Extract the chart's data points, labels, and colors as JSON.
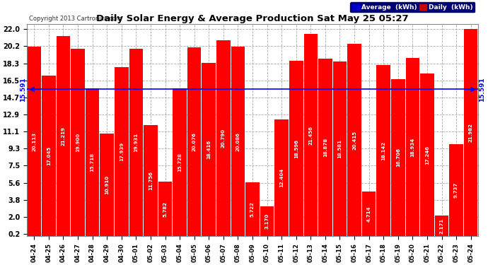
{
  "title": "Daily Solar Energy & Average Production Sat May 25 05:27",
  "copyright": "Copyright 2013 Cartronics.com",
  "average_value": 15.591,
  "bar_color": "#ff0000",
  "average_line_color": "#0000ff",
  "background_color": "#ffffff",
  "plot_bg_color": "#ffffff",
  "grid_color": "#aaaaaa",
  "categories": [
    "04-24",
    "04-25",
    "04-26",
    "04-27",
    "04-28",
    "04-29",
    "04-30",
    "05-01",
    "05-02",
    "05-03",
    "05-04",
    "05-05",
    "05-06",
    "05-07",
    "05-08",
    "05-09",
    "05-10",
    "05-11",
    "05-12",
    "05-13",
    "05-14",
    "05-15",
    "05-16",
    "05-17",
    "05-18",
    "05-19",
    "05-20",
    "05-21",
    "05-22",
    "05-23",
    "05-24"
  ],
  "values": [
    20.113,
    17.045,
    21.219,
    19.9,
    15.718,
    10.91,
    17.939,
    19.931,
    11.756,
    5.782,
    15.728,
    20.076,
    18.416,
    20.79,
    20.086,
    5.722,
    3.17,
    12.404,
    18.596,
    21.456,
    18.878,
    18.581,
    20.415,
    4.714,
    18.142,
    16.706,
    18.934,
    17.246,
    2.171,
    9.737,
    21.982
  ],
  "yticks": [
    0.2,
    2.0,
    3.8,
    5.6,
    7.5,
    9.3,
    11.1,
    12.9,
    14.7,
    16.5,
    18.3,
    20.2,
    22.0
  ],
  "ylim": [
    0,
    22.5
  ],
  "legend_avg_label": "Average  (kWh)",
  "legend_daily_label": "Daily  (kWh)",
  "avg_annotation": "15.591",
  "figsize": [
    6.9,
    3.75
  ],
  "dpi": 100
}
